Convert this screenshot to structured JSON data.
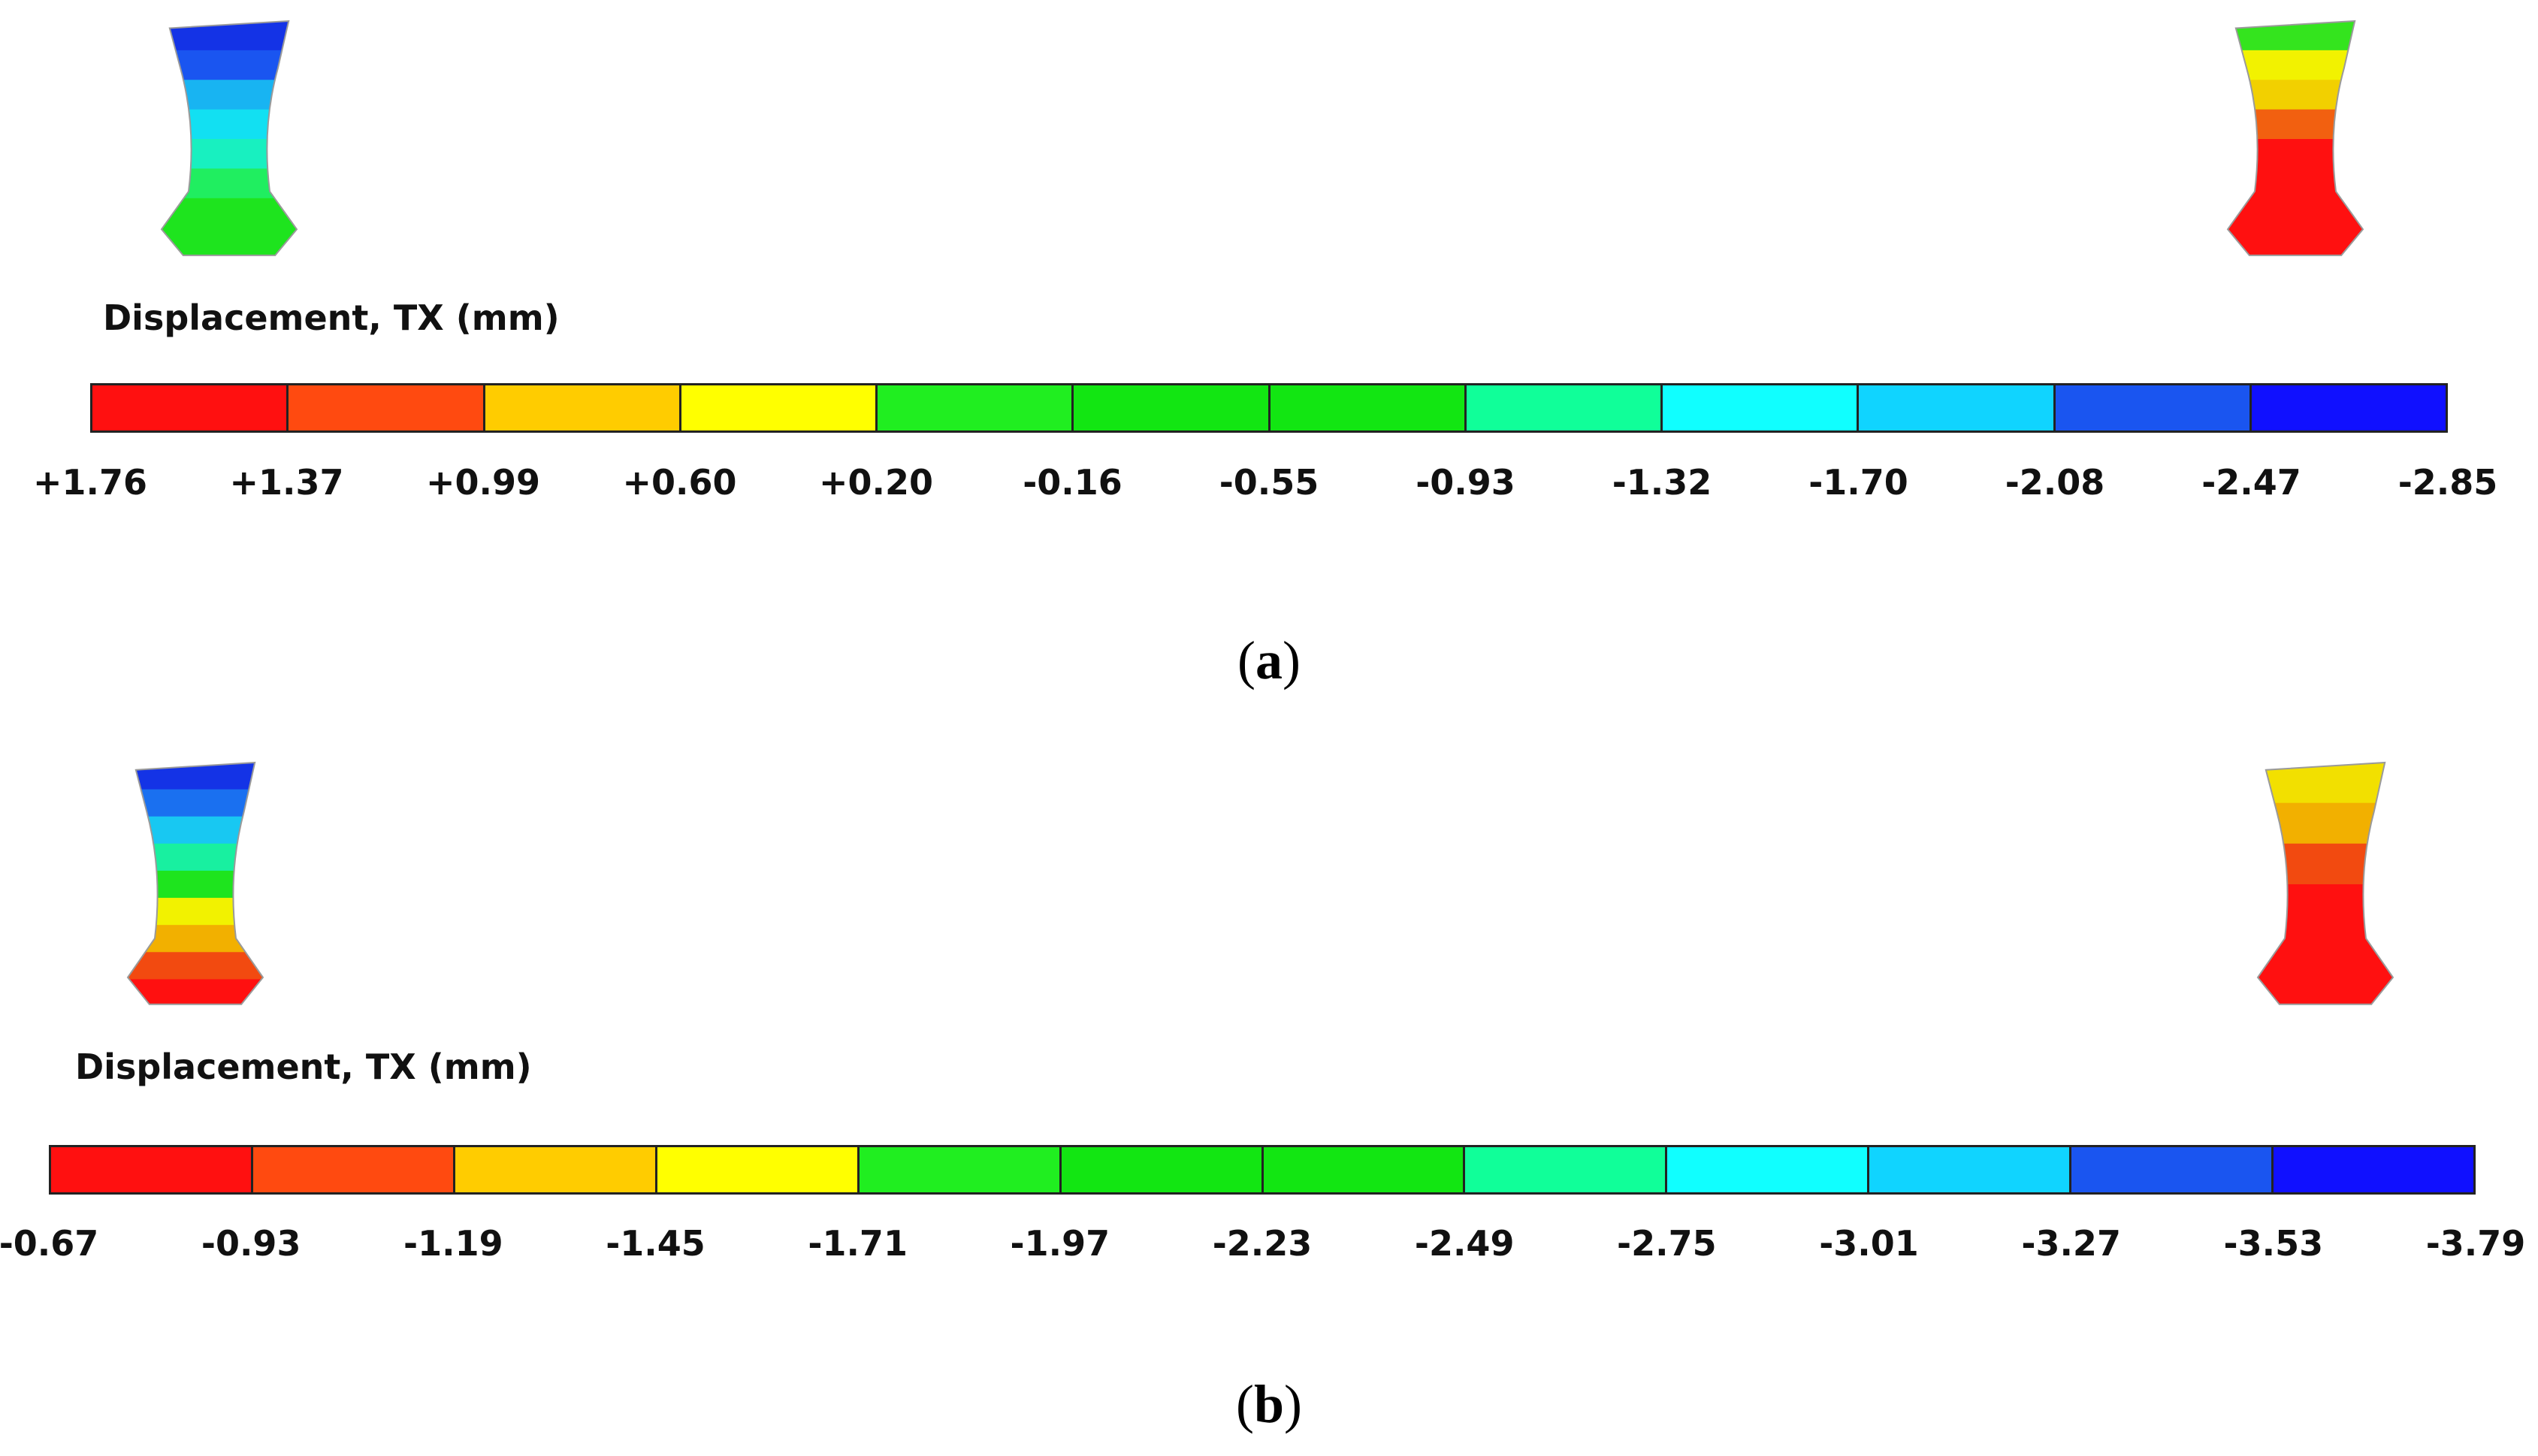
{
  "panels": [
    {
      "id": "a",
      "legend_title": "Displacement, TX (mm)",
      "caption_letter": "a",
      "tick_labels": [
        "+1.76",
        "+1.37",
        "+0.99",
        "+0.60",
        "+0.20",
        "-0.16",
        "-0.55",
        "-0.93",
        "-1.32",
        "-1.70",
        "-2.08",
        "-2.47",
        "-2.85"
      ],
      "left_specimen_bands_top_to_bottom": [
        "#1433e6",
        "#1a55f0",
        "#18b4f2",
        "#12e0f2",
        "#18f0c0",
        "#20ee60",
        "#1ee41e",
        "#1ee41e"
      ],
      "right_specimen_bands_top_to_bottom": [
        "#34e41e",
        "#f2f200",
        "#f2d000",
        "#f26010",
        "#ff1010",
        "#ff1010",
        "#ff1010",
        "#ff1010"
      ]
    },
    {
      "id": "b",
      "legend_title": "Displacement, TX (mm)",
      "caption_letter": "b",
      "tick_labels": [
        "-0.67",
        "-0.93",
        "-1.19",
        "-1.45",
        "-1.71",
        "-1.97",
        "-2.23",
        "-2.49",
        "-2.75",
        "-3.01",
        "-3.27",
        "-3.53",
        "-3.79"
      ],
      "left_specimen_bands_top_to_bottom": [
        "#1433e6",
        "#1a70f0",
        "#18c8f2",
        "#18f0a0",
        "#1ee41e",
        "#f2f200",
        "#f2b000",
        "#f24a10",
        "#ff1010"
      ],
      "right_specimen_bands_top_to_bottom": [
        "#f2e000",
        "#f2b000",
        "#f24a10",
        "#ff1010",
        "#ff1010",
        "#ff1010"
      ]
    }
  ],
  "colormap": [
    "#ff1010",
    "#ff4a10",
    "#ffcc00",
    "#ffff00",
    "#20ee20",
    "#12e612",
    "#12e612",
    "#10ff99",
    "#10ffff",
    "#10d4ff",
    "#1a55f0",
    "#1010ff"
  ]
}
